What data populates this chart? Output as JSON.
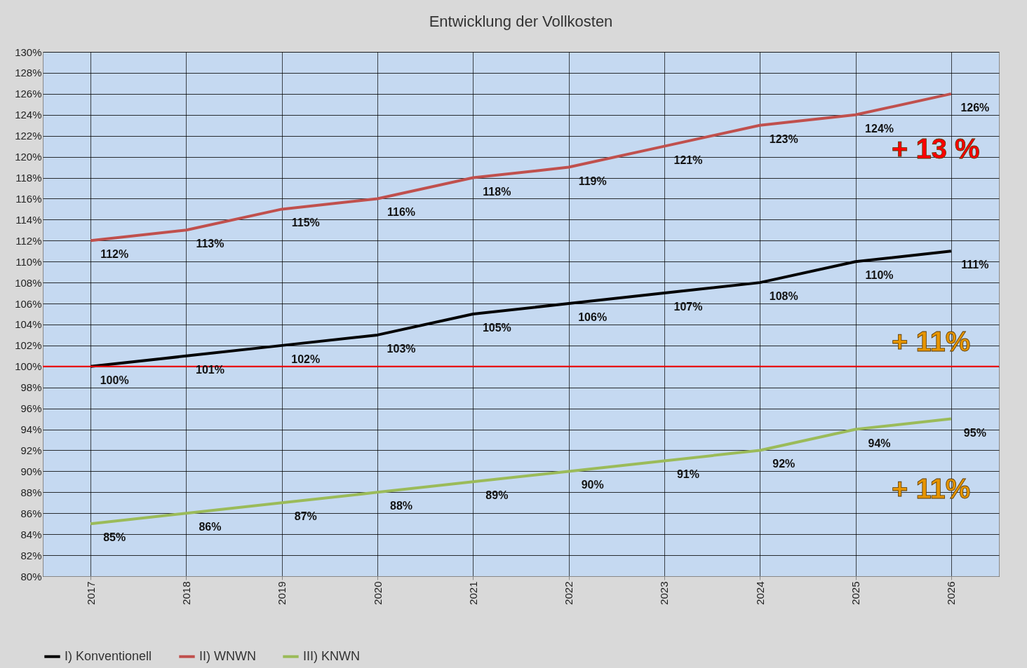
{
  "chart_data": {
    "type": "line",
    "title": "Entwicklung der Vollkosten",
    "categories": [
      "2017",
      "2018",
      "2019",
      "2020",
      "2021",
      "2022",
      "2023",
      "2024",
      "2025",
      "2026"
    ],
    "series": [
      {
        "name": "I) Konventionell",
        "color": "#000000",
        "values": [
          100,
          101,
          102,
          103,
          105,
          106,
          107,
          108,
          110,
          111
        ],
        "value_labels": [
          "100%",
          "101%",
          "102%",
          "103%",
          "105%",
          "106%",
          "107%",
          "108%",
          "110%",
          "111%"
        ]
      },
      {
        "name": "II) WNWN",
        "color": "#c0504d",
        "values": [
          112,
          113,
          115,
          116,
          118,
          119,
          121,
          123,
          124,
          126
        ],
        "value_labels": [
          "112%",
          "113%",
          "115%",
          "116%",
          "118%",
          "119%",
          "121%",
          "123%",
          "124%",
          "126%"
        ]
      },
      {
        "name": "III) KNWN",
        "color": "#9bbb59",
        "values": [
          85,
          86,
          87,
          88,
          89,
          90,
          91,
          92,
          94,
          95
        ],
        "value_labels": [
          "85%",
          "86%",
          "87%",
          "88%",
          "89%",
          "90%",
          "91%",
          "92%",
          "94%",
          "95%"
        ]
      }
    ],
    "ylim": [
      80,
      130
    ],
    "yticks": [
      {
        "value": 80,
        "label": "80%"
      },
      {
        "value": 82,
        "label": "82%"
      },
      {
        "value": 84,
        "label": "84%"
      },
      {
        "value": 86,
        "label": "86%"
      },
      {
        "value": 88,
        "label": "88%"
      },
      {
        "value": 90,
        "label": "90%"
      },
      {
        "value": 92,
        "label": "92%"
      },
      {
        "value": 94,
        "label": "94%"
      },
      {
        "value": 96,
        "label": "96%"
      },
      {
        "value": 98,
        "label": "98%"
      },
      {
        "value": 100,
        "label": "100%"
      },
      {
        "value": 102,
        "label": "102%"
      },
      {
        "value": 104,
        "label": "104%"
      },
      {
        "value": 106,
        "label": "106%"
      },
      {
        "value": 108,
        "label": "108%"
      },
      {
        "value": 110,
        "label": "110%"
      },
      {
        "value": 112,
        "label": "112%"
      },
      {
        "value": 114,
        "label": "114%"
      },
      {
        "value": 116,
        "label": "116%"
      },
      {
        "value": 118,
        "label": "118%"
      },
      {
        "value": 120,
        "label": "120%"
      },
      {
        "value": 122,
        "label": "122%"
      },
      {
        "value": 124,
        "label": "124%"
      },
      {
        "value": 126,
        "label": "126%"
      },
      {
        "value": 128,
        "label": "128%"
      },
      {
        "value": 130,
        "label": "130%"
      }
    ],
    "ref_lines": [
      {
        "axis": "y",
        "value": 100,
        "color": "#ff0000"
      }
    ],
    "annotations": [
      "+ 13 %",
      "+ 11%",
      "+ 11%"
    ],
    "grid": true,
    "legend": "bottom"
  }
}
